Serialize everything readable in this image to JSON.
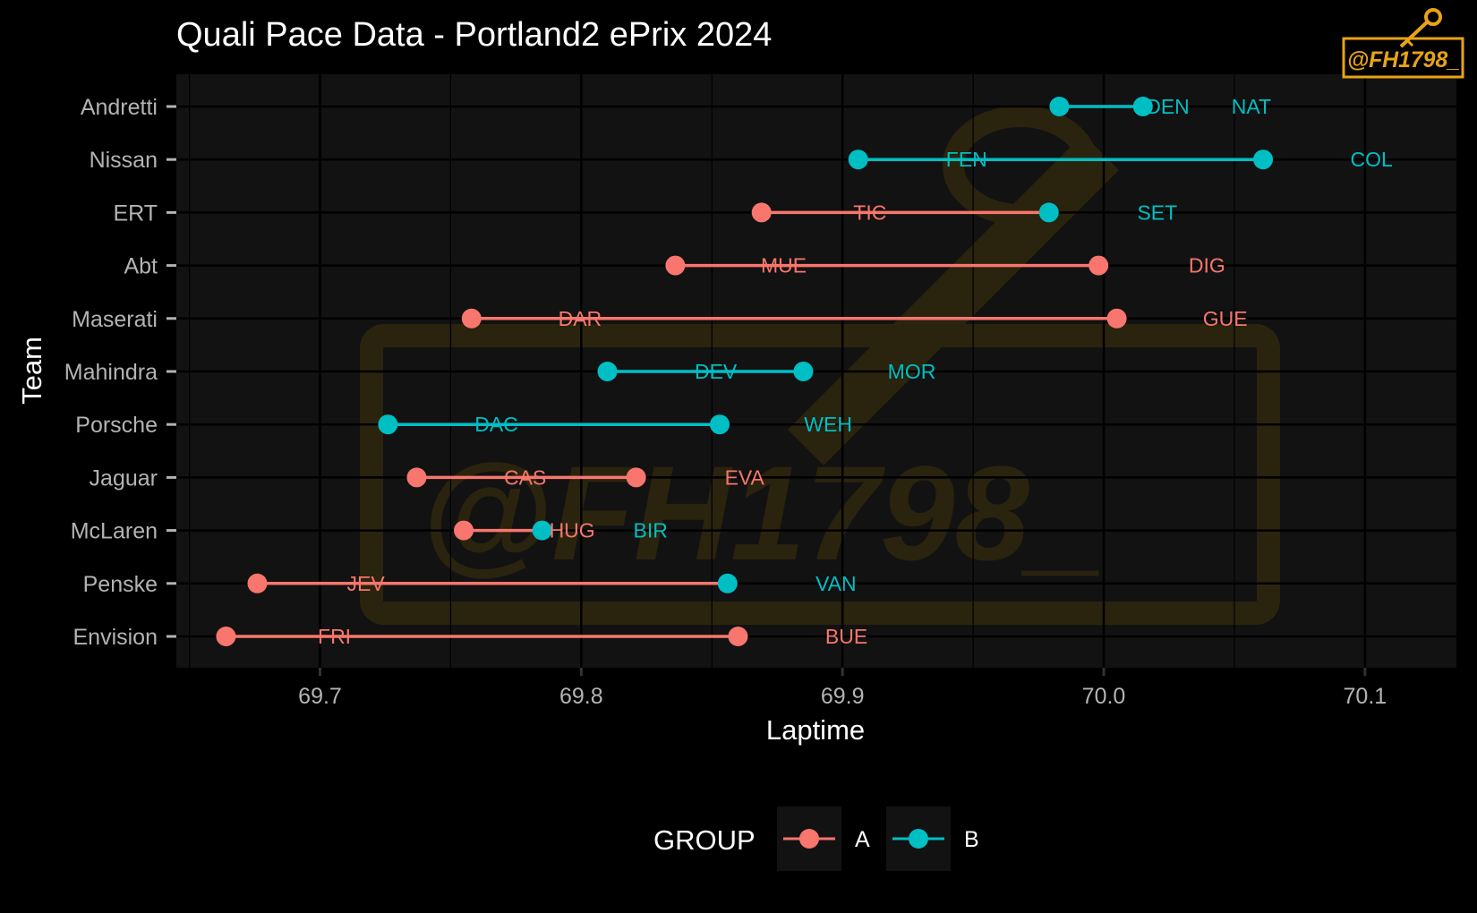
{
  "colors": {
    "A": "#f8766d",
    "B": "#00bfc4",
    "logo": "#e8a317"
  },
  "logo": {
    "text": "@FH1798_",
    "icon": "key-icon"
  },
  "chart_data": {
    "type": "dumbbell",
    "title": "Quali Pace Data - Portland2 ePrix 2024",
    "xlabel": "Laptime",
    "ylabel": "Team",
    "xlim": [
      69.645,
      70.135
    ],
    "xticks": [
      69.7,
      69.8,
      69.9,
      70.0,
      70.1
    ],
    "xtick_labels": [
      "69.7",
      "69.8",
      "69.9",
      "70.0",
      "70.1"
    ],
    "legend": {
      "title": "GROUP",
      "entries": [
        "A",
        "B"
      ],
      "position": "bottom"
    },
    "teams": [
      {
        "team": "Andretti",
        "group": "B",
        "start": 69.983,
        "end": 70.015,
        "driver1": "DEN",
        "driver2": "NAT"
      },
      {
        "team": "Nissan",
        "group": "B",
        "start": 69.906,
        "end": 70.061,
        "driver1": "FEN",
        "driver2": "COL"
      },
      {
        "team": "ERT",
        "group": "A",
        "start": 69.869,
        "end": 69.979,
        "end_group": "B",
        "driver1": "TIC",
        "driver2": "SET"
      },
      {
        "team": "Abt",
        "group": "A",
        "start": 69.836,
        "end": 69.998,
        "driver1": "MUE",
        "driver2": "DIG"
      },
      {
        "team": "Maserati",
        "group": "A",
        "start": 69.758,
        "end": 70.005,
        "driver1": "DAR",
        "driver2": "GUE"
      },
      {
        "team": "Mahindra",
        "group": "B",
        "start": 69.81,
        "end": 69.885,
        "driver1": "DEV",
        "driver2": "MOR"
      },
      {
        "team": "Porsche",
        "group": "B",
        "start": 69.726,
        "end": 69.853,
        "driver1": "DAC",
        "driver2": "WEH"
      },
      {
        "team": "Jaguar",
        "group": "A",
        "start": 69.737,
        "end": 69.821,
        "driver1": "CAS",
        "driver2": "EVA"
      },
      {
        "team": "McLaren",
        "group": "A",
        "start": 69.755,
        "end": 69.785,
        "end_group": "B",
        "driver1": "HUG",
        "driver2": "BIR"
      },
      {
        "team": "Penske",
        "group": "A",
        "start": 69.676,
        "end": 69.856,
        "end_group": "B",
        "driver1": "JEV",
        "driver2": "VAN"
      },
      {
        "team": "Envision",
        "group": "A",
        "start": 69.664,
        "end": 69.86,
        "driver1": "FRI",
        "driver2": "BUE"
      }
    ]
  }
}
